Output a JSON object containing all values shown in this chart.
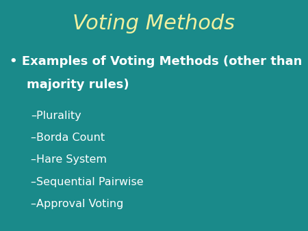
{
  "title": "Voting Methods",
  "background_color": "#1a8a8a",
  "title_color": "#f0f0a0",
  "title_fontsize": 22,
  "title_style": "italic",
  "bullet_color": "#ffffff",
  "bullet_fontsize": 13,
  "sub_items": [
    "–Plurality",
    "–Borda Count",
    "–Hare System",
    "–Sequential Pairwise",
    "–Approval Voting"
  ],
  "sub_fontsize": 11.5,
  "sub_color": "#ffffff"
}
